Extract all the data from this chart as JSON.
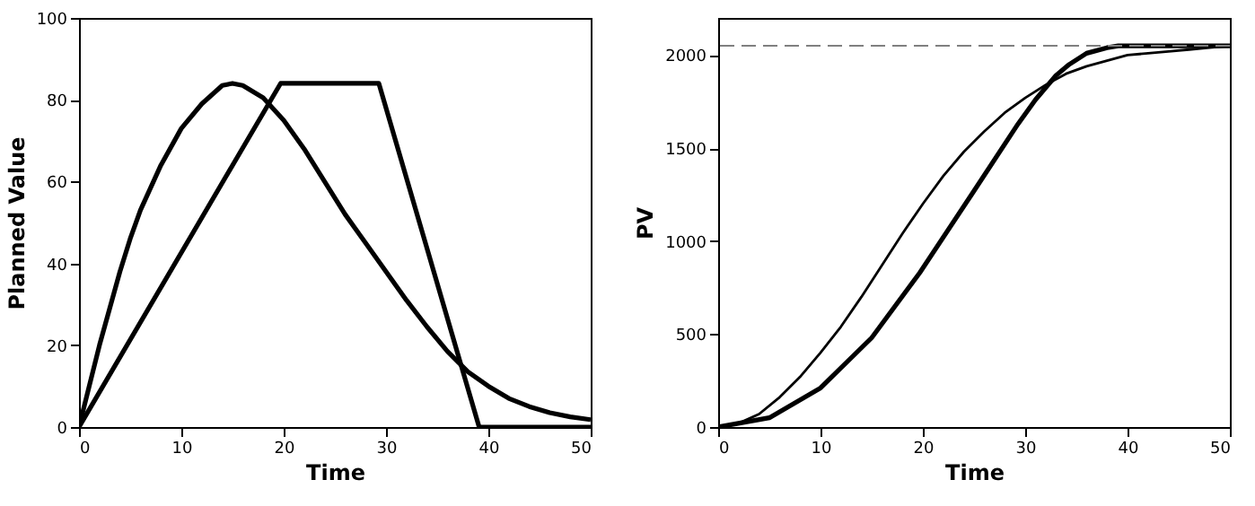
{
  "chart_data": [
    {
      "type": "line",
      "xlabel": "Time",
      "ylabel": "Planned Value",
      "xlim": [
        0,
        50
      ],
      "ylim": [
        0,
        100
      ],
      "xticks": [
        0,
        10,
        20,
        30,
        40,
        50
      ],
      "yticks": [
        0,
        20,
        40,
        60,
        80,
        100
      ],
      "grid": false,
      "marker": "none",
      "line_style": "solid",
      "series": [
        {
          "color": "#000000",
          "x": [
            0,
            1,
            2,
            3,
            4,
            5,
            6,
            8,
            10,
            12,
            14,
            15,
            16,
            18,
            20,
            22,
            24,
            26,
            28,
            30,
            32,
            34,
            36,
            38,
            40,
            42,
            44,
            46,
            48,
            50
          ],
          "values": [
            0,
            10,
            20,
            29,
            38,
            46,
            53,
            64,
            73,
            79,
            83.5,
            84,
            83.5,
            80.5,
            75,
            68,
            60,
            52,
            45,
            38,
            31,
            24.5,
            18.5,
            13.5,
            10,
            7,
            5,
            3.5,
            2.5,
            1.8
          ]
        },
        {
          "color": "#000000",
          "x": [
            0,
            19.7,
            29.3,
            39.1,
            50
          ],
          "values": [
            0,
            84,
            84,
            0,
            0
          ]
        }
      ]
    },
    {
      "type": "line",
      "xlabel": "Time",
      "ylabel": "PV",
      "xlim": [
        0,
        50
      ],
      "ylim": [
        0,
        2200
      ],
      "xticks": [
        0,
        10,
        20,
        30,
        40,
        50
      ],
      "yticks": [
        0,
        500,
        1000,
        1500,
        2000
      ],
      "grid": false,
      "marker": "none",
      "line_style": "solid",
      "series": [
        {
          "color": "#000000",
          "x": [
            0,
            2,
            4,
            6,
            8,
            10,
            12,
            14,
            16,
            18,
            20,
            22,
            24,
            26,
            28,
            30,
            32,
            34,
            36,
            38,
            40,
            42,
            44,
            46,
            48,
            50
          ],
          "values": [
            0,
            20,
            70,
            160,
            270,
            400,
            540,
            700,
            870,
            1040,
            1200,
            1350,
            1480,
            1590,
            1690,
            1770,
            1840,
            1900,
            1940,
            1970,
            2000,
            2010,
            2020,
            2030,
            2040,
            2050
          ]
        },
        {
          "color": "#000000",
          "x": [
            0,
            5,
            10,
            15,
            19.7,
            25,
            29.3,
            31,
            33,
            34.3,
            36,
            38,
            39.1,
            50
          ],
          "values": [
            0,
            50,
            210,
            480,
            830,
            1270,
            1630,
            1760,
            1890,
            1950,
            2010,
            2040,
            2050,
            2050
          ]
        }
      ],
      "ref_lines": [
        {
          "axis": "y",
          "value": 2050,
          "color": "#808080",
          "line_style": "dashed"
        }
      ]
    }
  ]
}
